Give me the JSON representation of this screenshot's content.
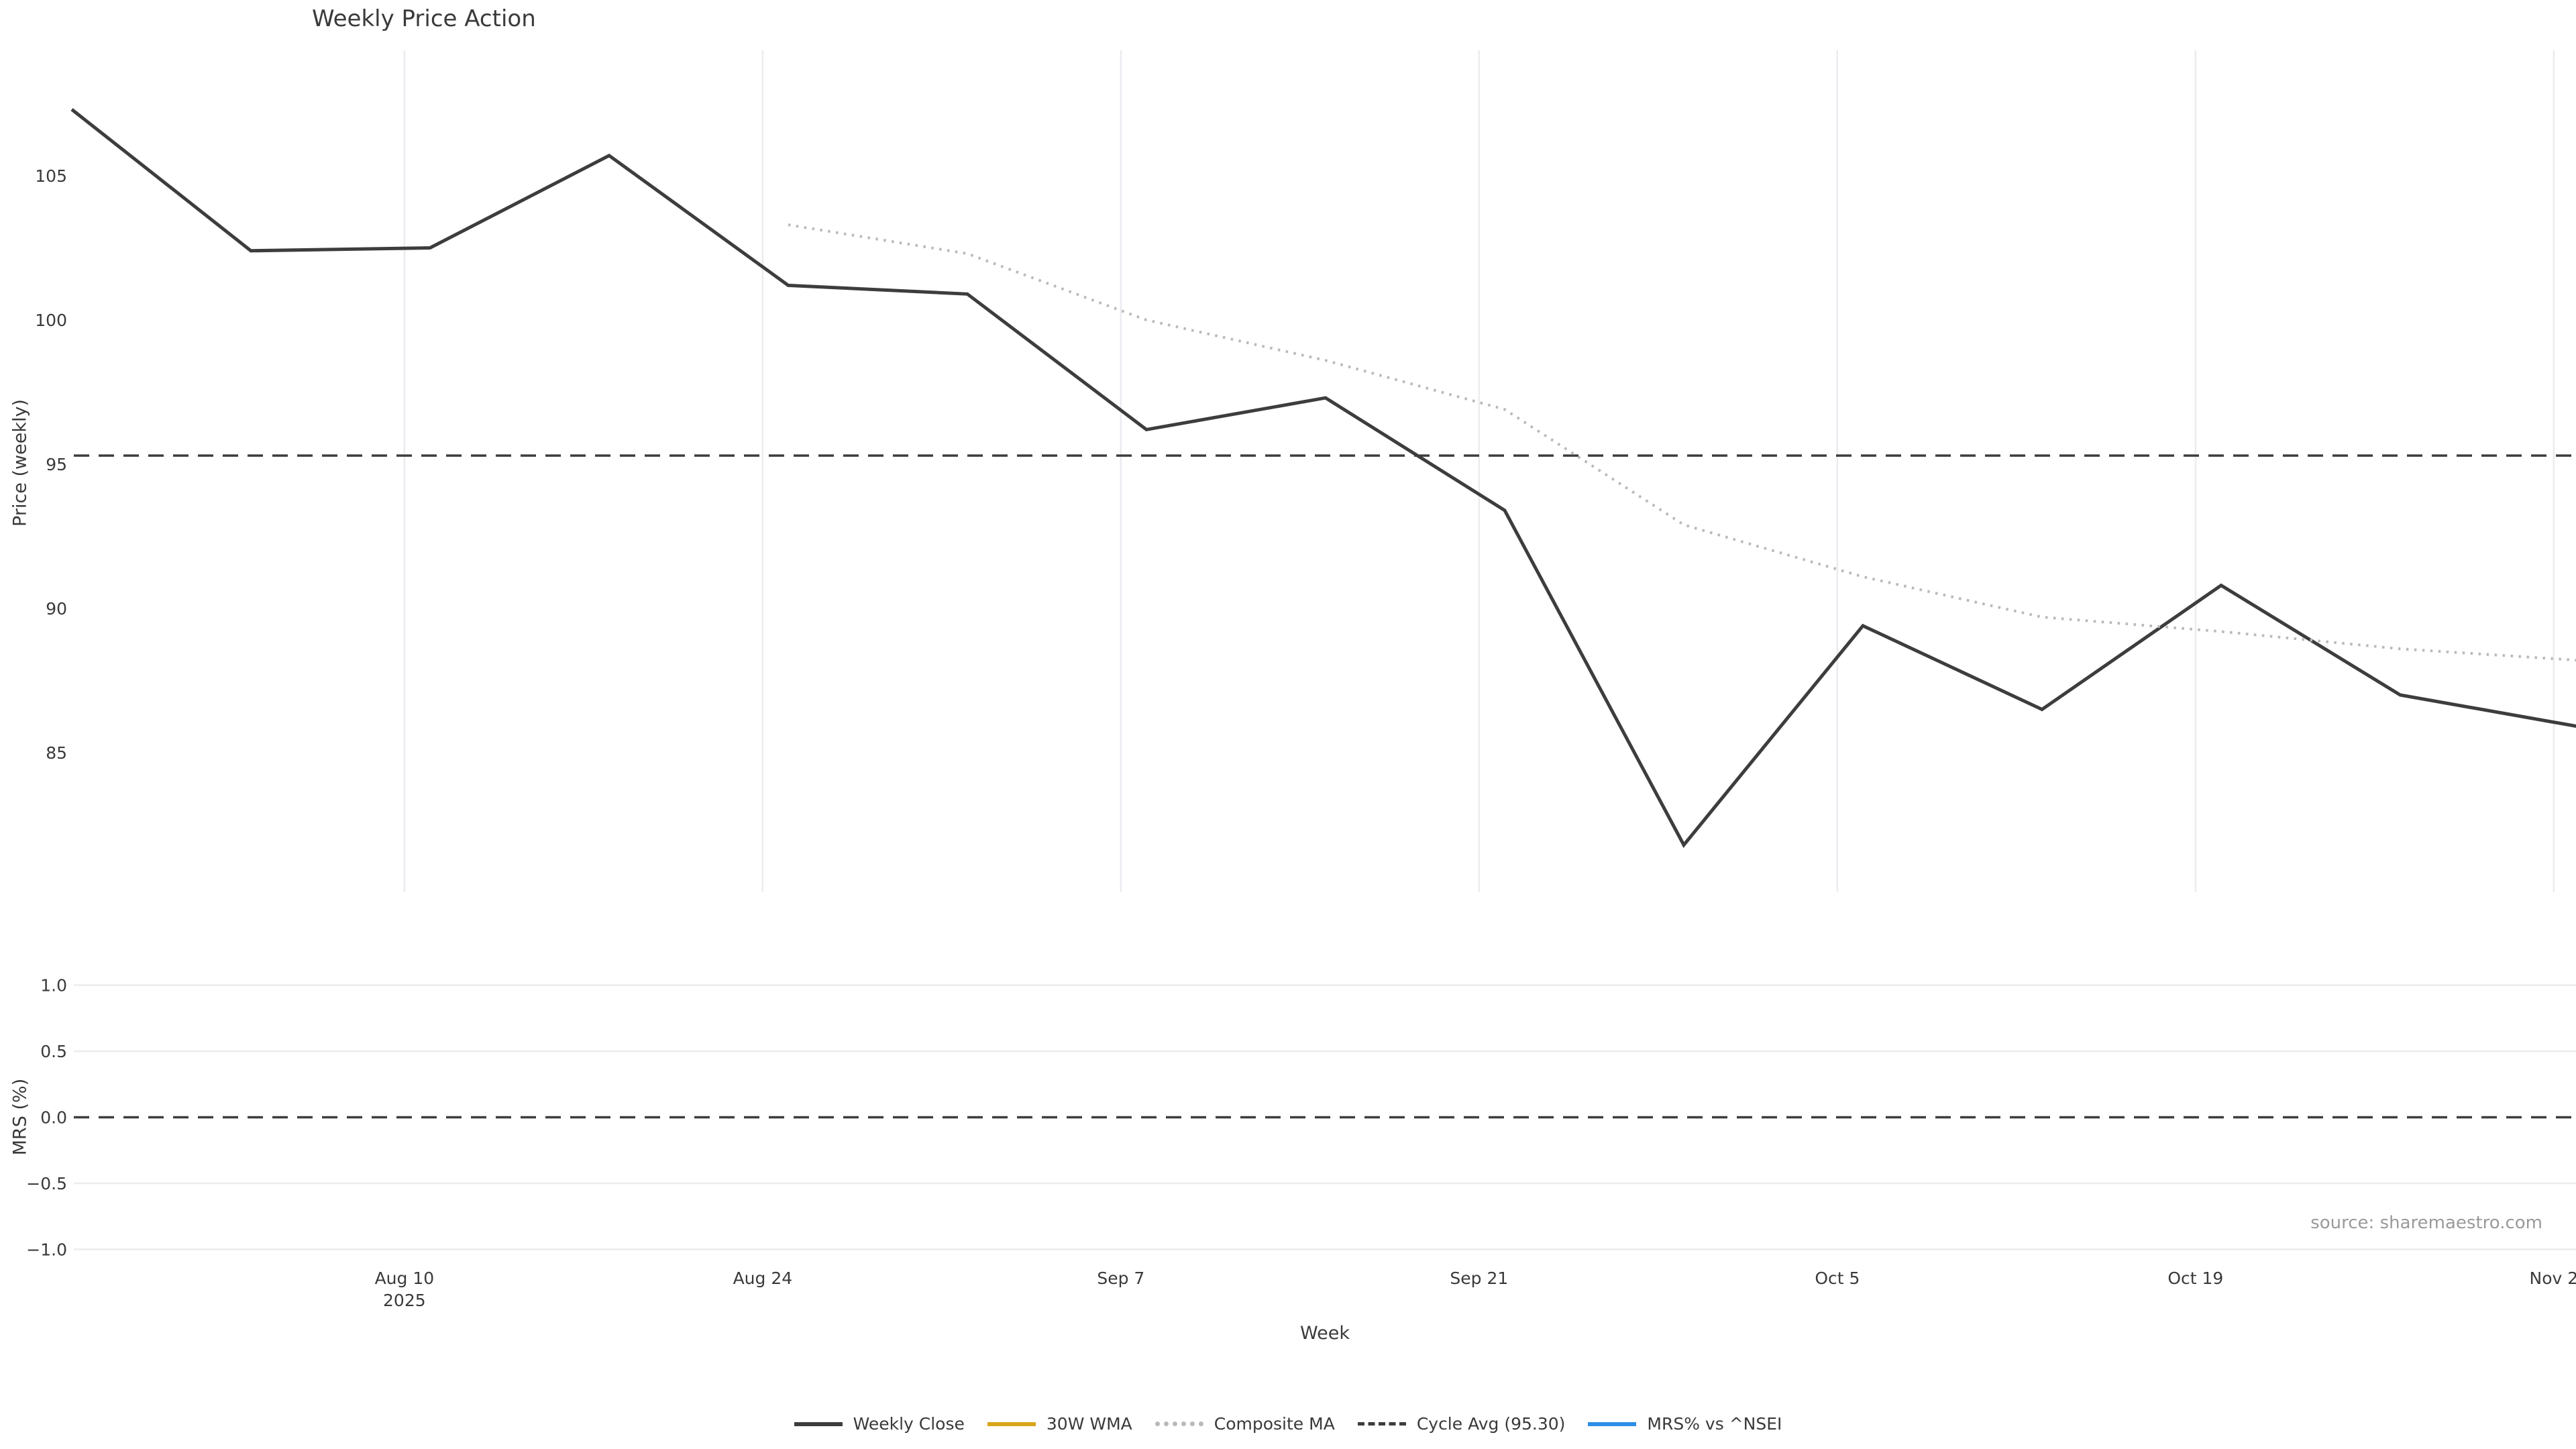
{
  "title": "Weekly Price Action",
  "xlabel": "Week",
  "source": "source: sharemaestro.com",
  "price_panel": {
    "ylabel": "Price (weekly)",
    "yticks": [
      {
        "label": "105",
        "value": 105
      },
      {
        "label": "100",
        "value": 100
      },
      {
        "label": "95",
        "value": 95
      },
      {
        "label": "90",
        "value": 90
      },
      {
        "label": "85",
        "value": 85
      }
    ]
  },
  "mrs_panel": {
    "ylabel": "MRS (%)",
    "yticks": [
      {
        "label": "1.0",
        "value": 1.0
      },
      {
        "label": "0.5",
        "value": 0.5
      },
      {
        "label": "0.0",
        "value": 0.0
      },
      {
        "label": "−0.5",
        "value": -0.5
      },
      {
        "label": "−1.0",
        "value": -1.0
      }
    ]
  },
  "xticks": [
    {
      "label": "Aug 10",
      "sublabel": "2025",
      "day_offset": 13
    },
    {
      "label": "Aug 24",
      "sublabel": "",
      "day_offset": 27
    },
    {
      "label": "Sep 7",
      "sublabel": "",
      "day_offset": 41
    },
    {
      "label": "Sep 21",
      "sublabel": "",
      "day_offset": 55
    },
    {
      "label": "Oct 5",
      "sublabel": "",
      "day_offset": 69
    },
    {
      "label": "Oct 19",
      "sublabel": "",
      "day_offset": 83
    },
    {
      "label": "Nov 2",
      "sublabel": "",
      "day_offset": 97
    }
  ],
  "legend": [
    {
      "label": "Weekly Close",
      "color": "#3d3d3d",
      "style": "solid"
    },
    {
      "label": "30W WMA",
      "color": "#d9a51b",
      "style": "solid"
    },
    {
      "label": "Composite MA",
      "color": "#b9b9b9",
      "style": "dotted"
    },
    {
      "label": "Cycle Avg (95.30)",
      "color": "#3d3d3d",
      "style": "dashed"
    },
    {
      "label": "MRS% vs ^NSEI",
      "color": "#2e8ee5",
      "style": "solid"
    }
  ],
  "colors": {
    "weekly_close": "#3d3d3d",
    "wma_30w": "#d9a51b",
    "composite_ma": "#b9b9b9",
    "cycle_avg": "#3d3d3d",
    "mrs": "#2e8ee5",
    "grid": "#ebebf0",
    "text": "#3a3a3a",
    "source_text": "#9a9a9a"
  },
  "chart_data": {
    "type": "line",
    "title": "Weekly Price Action",
    "xlabel": "Week",
    "x_weeks": [
      "2025-07-28",
      "2025-08-04",
      "2025-08-11",
      "2025-08-18",
      "2025-08-25",
      "2025-09-01",
      "2025-09-08",
      "2025-09-15",
      "2025-09-22",
      "2025-09-29",
      "2025-10-06",
      "2025-10-13",
      "2025-10-20",
      "2025-10-27",
      "2025-11-03"
    ],
    "series": [
      {
        "name": "Weekly Close",
        "panel": "price",
        "style": "solid",
        "color": "#3d3d3d",
        "values": [
          107.3,
          102.4,
          102.5,
          105.7,
          101.2,
          100.9,
          96.2,
          97.3,
          93.4,
          81.8,
          89.4,
          86.5,
          90.8,
          87.0,
          85.9
        ]
      },
      {
        "name": "Composite MA",
        "panel": "price",
        "style": "dotted",
        "color": "#b9b9b9",
        "values": [
          null,
          null,
          null,
          null,
          103.3,
          102.3,
          100.0,
          98.6,
          96.9,
          92.9,
          91.1,
          89.7,
          89.2,
          88.6,
          88.2
        ]
      },
      {
        "name": "30W WMA",
        "panel": "price",
        "style": "solid",
        "color": "#d9a51b",
        "values": []
      },
      {
        "name": "MRS% vs ^NSEI",
        "panel": "mrs",
        "style": "solid",
        "color": "#2e8ee5",
        "values": []
      }
    ],
    "hlines": [
      {
        "name": "Cycle Avg",
        "panel": "price",
        "value": 95.3,
        "style": "dashed",
        "color": "#3d3d3d"
      },
      {
        "name": "MRS zero",
        "panel": "mrs",
        "value": 0.0,
        "style": "dashed",
        "color": "#3d3d3d"
      }
    ],
    "price_axis": {
      "ylabel": "Price (weekly)",
      "ticks": [
        105,
        100,
        95,
        90,
        85
      ],
      "ylim": [
        80.2,
        109.3
      ],
      "grid": "vertical-only"
    },
    "mrs_axis": {
      "ylabel": "MRS (%)",
      "ticks": [
        1.0,
        0.5,
        0.0,
        -0.5,
        -1.0
      ],
      "ylim": [
        -1.24,
        1.15
      ],
      "grid": "horizontal-only"
    },
    "legend_position": "bottom-center"
  }
}
